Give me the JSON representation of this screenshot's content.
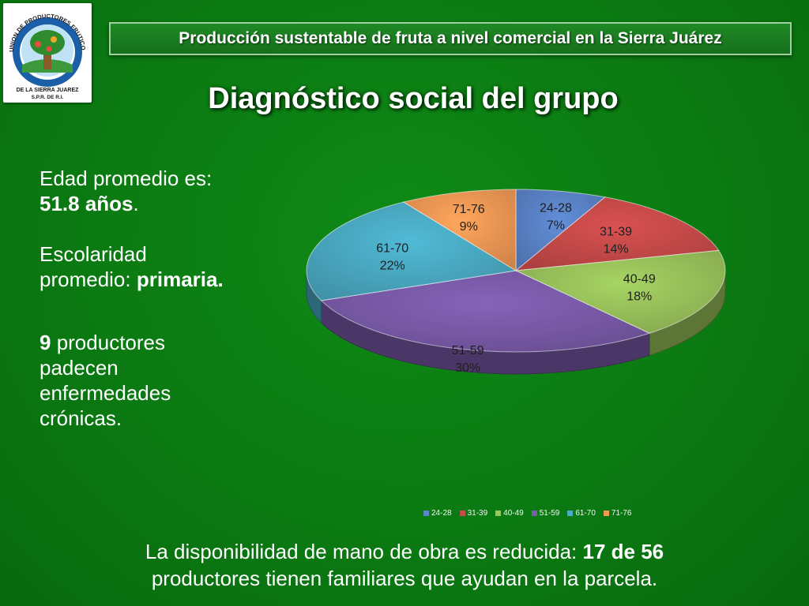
{
  "logo": {
    "arc_text": "UNION DE PRODUCTORES FRUTICOLAS",
    "line1": "DE LA SIERRA JUAREZ",
    "line2": "S.P.R. DE R.I."
  },
  "header": {
    "banner": "Producción sustentable de fruta a nivel comercial en la Sierra Juárez"
  },
  "slide_title": "Diagnóstico social del grupo",
  "left": {
    "age_label": "Edad promedio es:",
    "age_value": "51.8 años",
    "age_suffix": ".",
    "school_label_1": "Escolaridad",
    "school_label_2": "promedio:",
    "school_value": "primaria.",
    "chronic_count": "9",
    "chronic_l1": " productores",
    "chronic_l2": "padecen",
    "chronic_l3": "enfermedades",
    "chronic_l4": "crónicas."
  },
  "footer": {
    "line1_a": "La disponibilidad de mano de obra  es reducida: ",
    "line1_b": "17 de 56",
    "line2": "productores tienen familiares que ayudan en la parcela."
  },
  "chart_data": {
    "type": "pie",
    "style": "3d",
    "categories": [
      "24-28",
      "31-39",
      "40-49",
      "51-59",
      "61-70",
      "71-76"
    ],
    "values": [
      7,
      14,
      18,
      30,
      22,
      9
    ],
    "value_labels": [
      "7%",
      "14%",
      "18%",
      "30%",
      "22%",
      "9%"
    ],
    "colors": [
      "#5b84c9",
      "#c94b4a",
      "#9bc45c",
      "#7c5cab",
      "#4bacc6",
      "#f59a56"
    ],
    "legend": "bottom"
  }
}
